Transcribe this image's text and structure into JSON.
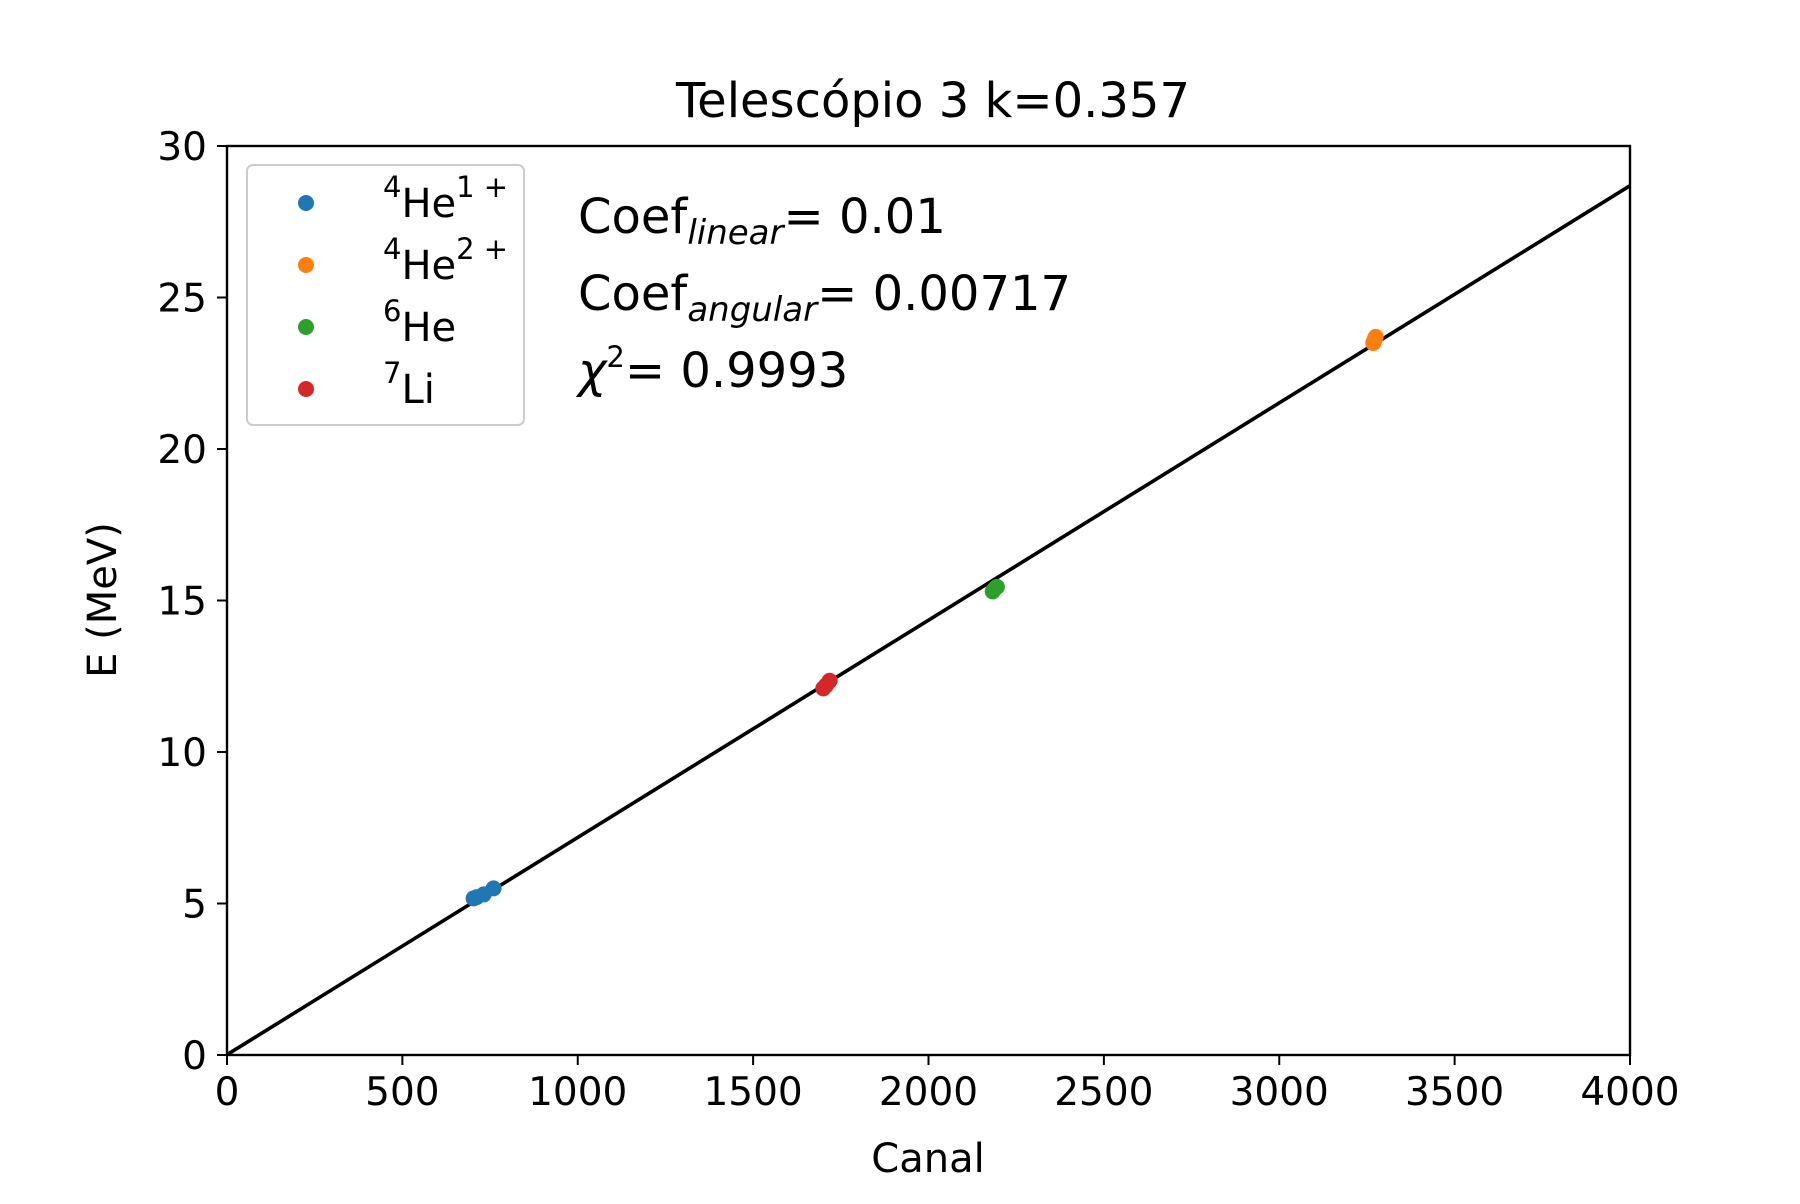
{
  "chart_data": {
    "type": "scatter",
    "title": "Telescópio 3    k=0.357",
    "xlabel": "Canal",
    "ylabel": "E (MeV)",
    "xlim": [
      0,
      4000
    ],
    "ylim": [
      0,
      30
    ],
    "xticks": [
      "0",
      "500",
      "1000",
      "1500",
      "2000",
      "2500",
      "3000",
      "3500",
      "4000"
    ],
    "yticks": [
      "0",
      "5",
      "10",
      "15",
      "20",
      "25",
      "30"
    ],
    "grid": false,
    "legend_position": "top-left",
    "series": [
      {
        "name": "4He1+",
        "label_parts": {
          "pre": "4",
          "base": "He",
          "post": "1 +"
        },
        "color": "#1f77b4",
        "points": [
          [
            703,
            5.17
          ],
          [
            712,
            5.21
          ],
          [
            732,
            5.3
          ],
          [
            760,
            5.5
          ]
        ]
      },
      {
        "name": "4He2+",
        "label_parts": {
          "pre": "4",
          "base": "He",
          "post": "2 +"
        },
        "color": "#ff7f0e",
        "points": [
          [
            3268,
            23.5
          ],
          [
            3272,
            23.62
          ],
          [
            3275,
            23.7
          ]
        ]
      },
      {
        "name": "6He",
        "label_parts": {
          "pre": "6",
          "base": "He",
          "post": ""
        },
        "color": "#2ca02c",
        "points": [
          [
            2183,
            15.3
          ],
          [
            2190,
            15.4
          ],
          [
            2195,
            15.45
          ]
        ]
      },
      {
        "name": "7Li",
        "label_parts": {
          "pre": "7",
          "base": "Li",
          "post": ""
        },
        "color": "#d62728",
        "points": [
          [
            1700,
            12.1
          ],
          [
            1708,
            12.2
          ],
          [
            1718,
            12.35
          ]
        ]
      }
    ],
    "fit_line": {
      "intercept": 0.01,
      "slope": 0.00717,
      "color": "#000000",
      "x_range": [
        0,
        4000
      ]
    },
    "annotations": {
      "linear": {
        "base": "Coef",
        "sub": "linear",
        "value": "= 0.01"
      },
      "angular": {
        "base": "Coef",
        "sub": "angular",
        "value": "= 0.00717"
      },
      "chi": {
        "base": "χ",
        "sup": "2",
        "value": "= 0.9993"
      }
    }
  }
}
